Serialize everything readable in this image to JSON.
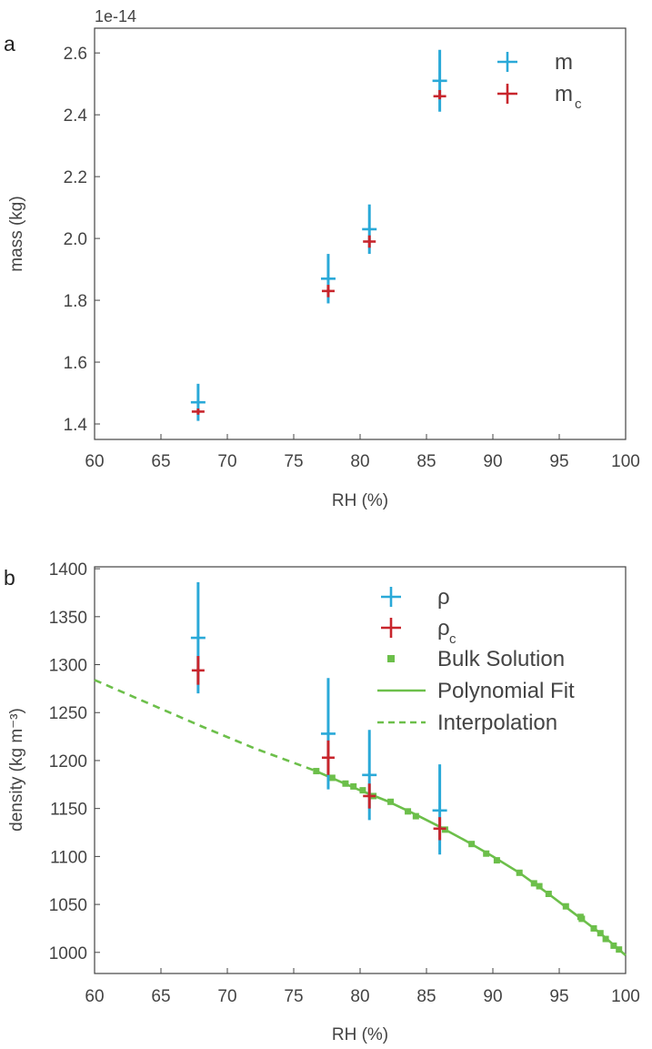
{
  "chart_data": [
    {
      "panel_label": "a",
      "type": "scatter",
      "xlabel": "RH (%)",
      "ylabel": "mass (kg)",
      "offset_text": "1e-14",
      "xlim": [
        60,
        100
      ],
      "ylim": [
        1.35,
        2.68
      ],
      "xticks": [
        60,
        65,
        70,
        75,
        80,
        85,
        90,
        95,
        100
      ],
      "yticks": [
        1.4,
        1.6,
        1.8,
        2.0,
        2.2,
        2.4,
        2.6
      ],
      "ytick_labels": [
        "1.4",
        "1.6",
        "1.8",
        "2.0",
        "2.2",
        "2.4",
        "2.6"
      ],
      "legend": {
        "position": "top-right"
      },
      "series": [
        {
          "name": "m",
          "legend_main": "m",
          "legend_sub": "",
          "color": "#2aa9d8",
          "x": [
            67.8,
            77.6,
            80.7,
            86.0
          ],
          "y": [
            1.47,
            1.87,
            2.03,
            2.51
          ],
          "yerr_low": [
            1.41,
            1.79,
            1.95,
            2.41
          ],
          "yerr_high": [
            1.53,
            1.95,
            2.11,
            2.61
          ]
        },
        {
          "name": "m_c",
          "legend_main": "m",
          "legend_sub": "c",
          "color": "#c8252c",
          "x": [
            67.8,
            77.6,
            80.7,
            86.0
          ],
          "y": [
            1.44,
            1.83,
            1.99,
            2.46
          ],
          "yerr_low": [
            1.43,
            1.81,
            1.97,
            2.45
          ],
          "yerr_high": [
            1.45,
            1.85,
            2.01,
            2.48
          ]
        }
      ]
    },
    {
      "panel_label": "b",
      "type": "scatter",
      "xlabel": "RH (%)",
      "ylabel": "density (kg m⁻³)",
      "xlim": [
        60,
        100
      ],
      "ylim": [
        978,
        1402
      ],
      "xticks": [
        60,
        65,
        70,
        75,
        80,
        85,
        90,
        95,
        100
      ],
      "yticks": [
        1000,
        1050,
        1100,
        1150,
        1200,
        1250,
        1300,
        1350,
        1400
      ],
      "ytick_labels": [
        "1000",
        "1050",
        "1100",
        "1150",
        "1200",
        "1250",
        "1300",
        "1350",
        "1400"
      ],
      "legend": {
        "position": "top-right"
      },
      "series": [
        {
          "name": "ρ",
          "legend_main": "ρ",
          "legend_sub": "",
          "color": "#2aa9d8",
          "x": [
            67.8,
            77.6,
            80.7,
            86.0
          ],
          "y": [
            1328,
            1228,
            1185,
            1148
          ],
          "yerr_low": [
            1270,
            1170,
            1138,
            1102
          ],
          "yerr_high": [
            1386,
            1286,
            1232,
            1196
          ]
        },
        {
          "name": "ρ_c",
          "legend_main": "ρ",
          "legend_sub": "c",
          "color": "#c8252c",
          "x": [
            67.8,
            77.6,
            80.7,
            86.0
          ],
          "y": [
            1294,
            1203,
            1163,
            1129
          ],
          "yerr_low": [
            1279,
            1185,
            1150,
            1117
          ],
          "yerr_high": [
            1309,
            1221,
            1176,
            1141
          ]
        },
        {
          "name": "Bulk Solution",
          "color": "#6cbf4a",
          "x": [
            76.7,
            77.9,
            78.9,
            79.5,
            80.2,
            81.0,
            82.3,
            83.6,
            84.2,
            86.4,
            88.4,
            89.5,
            90.3,
            92.0,
            93.1,
            93.5,
            94.2,
            95.5,
            96.6,
            96.7,
            97.6,
            98.1,
            98.5,
            99.1,
            99.5
          ],
          "y": [
            1189,
            1182,
            1176,
            1173,
            1169,
            1163,
            1157,
            1147,
            1142,
            1128,
            1113,
            1103,
            1096,
            1083,
            1072,
            1069,
            1061,
            1048,
            1037,
            1035,
            1025,
            1020,
            1014,
            1007,
            1003
          ]
        },
        {
          "name": "Polynomial Fit",
          "color": "#6cbf4a",
          "x": [
            76.5,
            78,
            80,
            82,
            84,
            86,
            88,
            90,
            92,
            94,
            96,
            98,
            100
          ],
          "y": [
            1190,
            1181,
            1169,
            1158,
            1145,
            1131,
            1116,
            1100,
            1083,
            1063,
            1042,
            1021,
            997
          ]
        },
        {
          "name": "Interpolation",
          "color": "#6cbf4a",
          "x": [
            60,
            64,
            68,
            72,
            76.5
          ],
          "y": [
            1284,
            1260,
            1236,
            1213,
            1190
          ]
        }
      ]
    }
  ]
}
